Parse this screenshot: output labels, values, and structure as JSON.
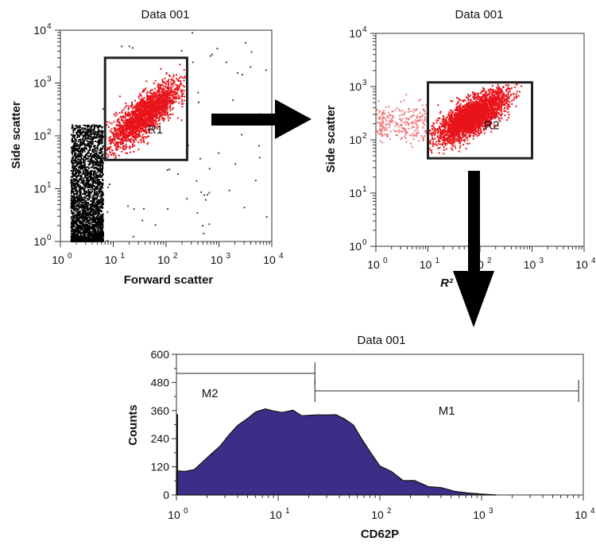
{
  "chart_data": [
    {
      "id": "plot1",
      "type": "scatter",
      "title": "Data 001",
      "xlabel": "Forward scatter",
      "ylabel": "Side scatter",
      "xscale": "log",
      "yscale": "log",
      "xlim": [
        1,
        10000
      ],
      "ylim": [
        1,
        10000
      ],
      "tick_labels_x": [
        "10",
        "10",
        "10",
        "10",
        "10"
      ],
      "tick_exp_x": [
        "0",
        "1",
        "2",
        "3",
        "4"
      ],
      "tick_labels_y": [
        "10",
        "10",
        "10",
        "10",
        "10"
      ],
      "tick_exp_y": [
        "0",
        "1",
        "2",
        "3",
        "4"
      ],
      "gate": {
        "label": "R1",
        "x": [
          7,
          250
        ],
        "y": [
          35,
          3000
        ]
      },
      "populations": [
        {
          "color": "#000000",
          "note_values": {
            "x_range": [
              1.5,
              7
            ],
            "y_range": [
              1,
              150
            ]
          }
        },
        {
          "color": "#e8141b",
          "note_values": {
            "x_center": 40,
            "y_center": 250
          }
        }
      ],
      "colors": {
        "gated": "#e8141b",
        "ungated": "#000000"
      }
    },
    {
      "id": "plot2",
      "type": "scatter",
      "title": "Data 001",
      "xlabel": "R²",
      "ylabel": "Side scatter",
      "xscale": "log",
      "yscale": "log",
      "xlim": [
        1,
        10000
      ],
      "ylim": [
        1,
        10000
      ],
      "tick_labels_x": [
        "10",
        "10",
        "10",
        "10",
        "10"
      ],
      "tick_exp_x": [
        "0",
        "1",
        "2",
        "3",
        "4"
      ],
      "tick_labels_y": [
        "10",
        "10",
        "10",
        "10",
        "10"
      ],
      "tick_exp_y": [
        "0",
        "1",
        "2",
        "3",
        "4"
      ],
      "gate": {
        "label": "R2",
        "x": [
          10,
          1000
        ],
        "y": [
          45,
          1200
        ]
      },
      "populations": [
        {
          "color": "#e8141b",
          "note_values": {
            "x_center": 70,
            "y_center": 270
          }
        }
      ]
    },
    {
      "id": "plot3",
      "type": "area",
      "title": "Data 001",
      "xlabel": "CD62P",
      "ylabel": "Counts",
      "xscale": "log",
      "xlim": [
        1,
        10000
      ],
      "ylim": [
        0,
        600
      ],
      "y_ticks": [
        "0",
        "120",
        "240",
        "360",
        "480",
        "600"
      ],
      "tick_labels_x": [
        "10",
        "10",
        "10",
        "10",
        "10"
      ],
      "tick_exp_x": [
        "0",
        "1",
        "2",
        "3",
        "4"
      ],
      "markers": [
        {
          "label": "M2",
          "x": [
            1,
            23
          ]
        },
        {
          "label": "M1",
          "x": [
            23,
            9000
          ]
        }
      ],
      "fill_color": "#3b2e86",
      "series": [
        {
          "x": [
            1,
            1.2,
            1.5,
            1.8,
            2.2,
            2.7,
            3.3,
            4,
            5,
            6,
            7.5,
            9,
            11,
            14,
            17,
            21,
            25,
            30,
            37,
            45,
            55,
            65,
            80,
            100,
            130,
            170,
            220,
            300,
            400,
            550,
            750,
            1000,
            1400
          ],
          "values": [
            95,
            100,
            115,
            135,
            165,
            205,
            250,
            295,
            330,
            350,
            360,
            365,
            360,
            352,
            345,
            340,
            332,
            335,
            338,
            332,
            300,
            240,
            175,
            120,
            90,
            70,
            55,
            40,
            25,
            15,
            8,
            4,
            0
          ]
        }
      ]
    }
  ]
}
